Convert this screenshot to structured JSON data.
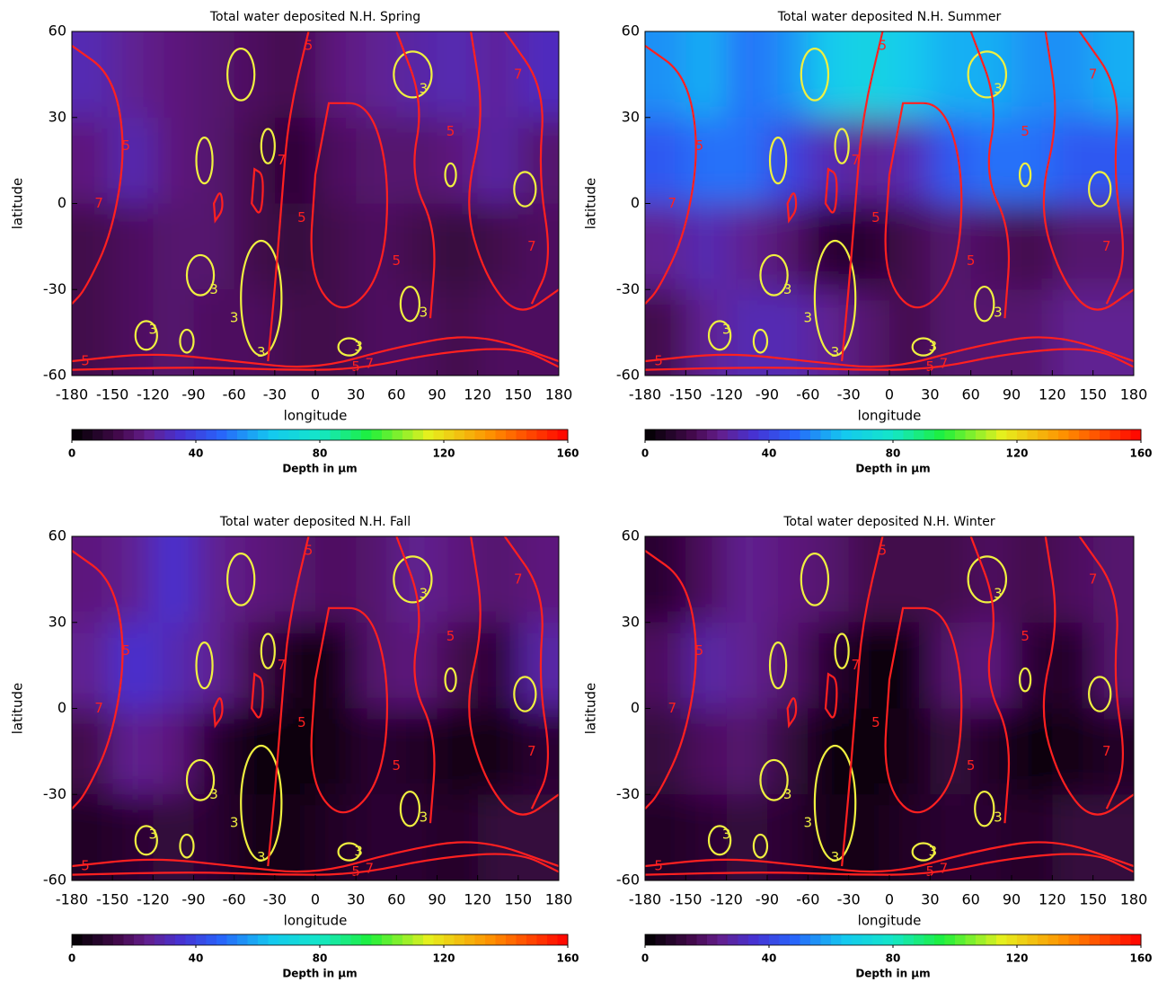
{
  "chart_data": [
    {
      "type": "contour",
      "title": "Total water deposited N.H. Spring",
      "x_label": "longitude",
      "y_label": "latitude",
      "xlim": [
        -180,
        180
      ],
      "ylim": [
        -60,
        60
      ],
      "xticks": [
        -180,
        -150,
        -120,
        -90,
        -60,
        -30,
        0,
        30,
        60,
        90,
        120,
        150,
        180
      ],
      "yticks": [
        -60,
        -30,
        0,
        30,
        60
      ],
      "grid_lat_edges": [
        60,
        30,
        0,
        -30,
        -60
      ],
      "values": [
        [
          30,
          25,
          22,
          20,
          18,
          15,
          22,
          25,
          28,
          30,
          26,
          32
        ],
        [
          22,
          30,
          22,
          20,
          15,
          10,
          18,
          20,
          20,
          22,
          28,
          20
        ],
        [
          15,
          18,
          20,
          20,
          15,
          12,
          15,
          18,
          15,
          12,
          15,
          18
        ],
        [
          15,
          18,
          20,
          18,
          18,
          15,
          15,
          18,
          18,
          15,
          18,
          18
        ]
      ],
      "contour_levels": [
        {
          "value": 3,
          "color": "#f0f040"
        },
        {
          "value": 5,
          "color": "#ff2020"
        },
        {
          "value": 7,
          "color": "#ff2020"
        }
      ],
      "colorbar": {
        "label": "Depth in μm",
        "lim": [
          0,
          160
        ],
        "ticks": [
          0,
          40,
          80,
          120,
          160
        ]
      }
    },
    {
      "type": "contour",
      "title": "Total water deposited N.H. Summer",
      "x_label": "longitude",
      "y_label": "latitude",
      "xlim": [
        -180,
        180
      ],
      "ylim": [
        -60,
        60
      ],
      "xticks": [
        -180,
        -150,
        -120,
        -90,
        -60,
        -30,
        0,
        30,
        60,
        90,
        120,
        150,
        180
      ],
      "yticks": [
        -60,
        -30,
        0,
        30,
        60
      ],
      "grid_lat_edges": [
        60,
        30,
        0,
        -30,
        -60
      ],
      "values": [
        [
          55,
          60,
          50,
          55,
          65,
          70,
          65,
          60,
          60,
          55,
          55,
          60
        ],
        [
          45,
          50,
          50,
          40,
          30,
          25,
          30,
          45,
          50,
          50,
          45,
          45
        ],
        [
          25,
          30,
          25,
          20,
          10,
          10,
          15,
          20,
          18,
          15,
          20,
          20
        ],
        [
          15,
          25,
          30,
          30,
          25,
          20,
          15,
          20,
          20,
          20,
          25,
          25
        ]
      ],
      "contour_levels": [
        {
          "value": 3,
          "color": "#f0f040"
        },
        {
          "value": 5,
          "color": "#ff2020"
        },
        {
          "value": 7,
          "color": "#ff2020"
        }
      ],
      "colorbar": {
        "label": "Depth in μm",
        "lim": [
          0,
          160
        ],
        "ticks": [
          0,
          40,
          80,
          120,
          160
        ]
      }
    },
    {
      "type": "contour",
      "title": "Total water deposited N.H. Fall",
      "x_label": "longitude",
      "y_label": "latitude",
      "xlim": [
        -180,
        180
      ],
      "ylim": [
        -60,
        60
      ],
      "xticks": [
        -180,
        -150,
        -120,
        -90,
        -60,
        -30,
        0,
        30,
        60,
        90,
        120,
        150,
        180
      ],
      "yticks": [
        -60,
        -30,
        0,
        30,
        60
      ],
      "grid_lat_edges": [
        60,
        30,
        0,
        -30,
        -60
      ],
      "values": [
        [
          22,
          25,
          35,
          25,
          22,
          20,
          18,
          20,
          25,
          22,
          20,
          22
        ],
        [
          25,
          35,
          30,
          25,
          15,
          5,
          5,
          20,
          22,
          15,
          10,
          28
        ],
        [
          15,
          25,
          22,
          10,
          3,
          3,
          5,
          10,
          8,
          5,
          5,
          10
        ],
        [
          8,
          10,
          12,
          10,
          5,
          5,
          8,
          10,
          10,
          8,
          12,
          12
        ]
      ],
      "contour_levels": [
        {
          "value": 3,
          "color": "#f0f040"
        },
        {
          "value": 5,
          "color": "#ff2020"
        },
        {
          "value": 7,
          "color": "#ff2020"
        }
      ],
      "colorbar": {
        "label": "Depth in μm",
        "lim": [
          0,
          160
        ],
        "ticks": [
          0,
          40,
          80,
          120,
          160
        ]
      }
    },
    {
      "type": "contour",
      "title": "Total water deposited N.H. Winter",
      "x_label": "longitude",
      "y_label": "latitude",
      "xlim": [
        -180,
        180
      ],
      "ylim": [
        -60,
        60
      ],
      "xticks": [
        -180,
        -150,
        -120,
        -90,
        -60,
        -30,
        0,
        30,
        60,
        90,
        120,
        150,
        180
      ],
      "yticks": [
        -60,
        -30,
        0,
        30,
        60
      ],
      "grid_lat_edges": [
        60,
        30,
        0,
        -30,
        -60
      ],
      "values": [
        [
          10,
          18,
          25,
          22,
          20,
          15,
          15,
          15,
          18,
          15,
          18,
          20
        ],
        [
          18,
          28,
          25,
          20,
          10,
          3,
          3,
          20,
          22,
          10,
          8,
          20
        ],
        [
          12,
          18,
          20,
          12,
          3,
          3,
          5,
          12,
          8,
          3,
          5,
          8
        ],
        [
          8,
          10,
          12,
          10,
          5,
          5,
          8,
          10,
          10,
          8,
          12,
          12
        ]
      ],
      "contour_levels": [
        {
          "value": 3,
          "color": "#f0f040"
        },
        {
          "value": 5,
          "color": "#ff2020"
        },
        {
          "value": 7,
          "color": "#ff2020"
        }
      ],
      "colorbar": {
        "label": "Depth in μm",
        "lim": [
          0,
          160
        ],
        "ticks": [
          0,
          40,
          80,
          120,
          160
        ]
      }
    }
  ]
}
